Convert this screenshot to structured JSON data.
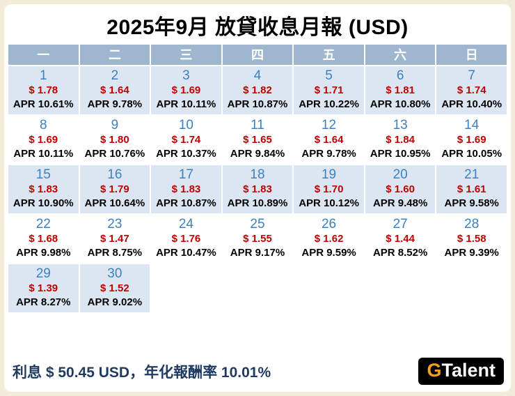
{
  "page": {
    "title": "2025年9月 放貸收息月報 (USD)"
  },
  "colors": {
    "page_background": "#f1ebd7",
    "card_background": "#ffffff",
    "header_background": "#9fb6cf",
    "cell_alt_background": "#dce6f2",
    "day_number_blue": "#3c80c0",
    "amount_red": "#c00000",
    "summary_navy": "#1f3a5f",
    "logo_orange": "#f7a01d",
    "logo_background": "#000000"
  },
  "calendar": {
    "weekday_headers": [
      "一",
      "二",
      "三",
      "四",
      "五",
      "六",
      "日"
    ],
    "total_grid_cells": 35,
    "days": [
      {
        "day": "1",
        "amount": "$ 1.78",
        "apr": "APR 10.61%"
      },
      {
        "day": "2",
        "amount": "$ 1.64",
        "apr": "APR 9.78%"
      },
      {
        "day": "3",
        "amount": "$ 1.69",
        "apr": "APR 10.11%"
      },
      {
        "day": "4",
        "amount": "$ 1.82",
        "apr": "APR 10.87%"
      },
      {
        "day": "5",
        "amount": "$ 1.71",
        "apr": "APR 10.22%"
      },
      {
        "day": "6",
        "amount": "$ 1.81",
        "apr": "APR 10.80%"
      },
      {
        "day": "7",
        "amount": "$ 1.74",
        "apr": "APR 10.40%"
      },
      {
        "day": "8",
        "amount": "$ 1.69",
        "apr": "APR 10.11%"
      },
      {
        "day": "9",
        "amount": "$ 1.80",
        "apr": "APR 10.76%"
      },
      {
        "day": "10",
        "amount": "$ 1.74",
        "apr": "APR 10.37%"
      },
      {
        "day": "11",
        "amount": "$ 1.65",
        "apr": "APR 9.84%"
      },
      {
        "day": "12",
        "amount": "$ 1.64",
        "apr": "APR 9.78%"
      },
      {
        "day": "13",
        "amount": "$ 1.84",
        "apr": "APR 10.95%"
      },
      {
        "day": "14",
        "amount": "$ 1.69",
        "apr": "APR 10.05%"
      },
      {
        "day": "15",
        "amount": "$ 1.83",
        "apr": "APR 10.90%"
      },
      {
        "day": "16",
        "amount": "$ 1.79",
        "apr": "APR 10.64%"
      },
      {
        "day": "17",
        "amount": "$ 1.83",
        "apr": "APR 10.87%"
      },
      {
        "day": "18",
        "amount": "$ 1.83",
        "apr": "APR 10.89%"
      },
      {
        "day": "19",
        "amount": "$ 1.70",
        "apr": "APR 10.12%"
      },
      {
        "day": "20",
        "amount": "$ 1.60",
        "apr": "APR 9.48%"
      },
      {
        "day": "21",
        "amount": "$ 1.61",
        "apr": "APR 9.58%"
      },
      {
        "day": "22",
        "amount": "$ 1.68",
        "apr": "APR 9.98%"
      },
      {
        "day": "23",
        "amount": "$ 1.47",
        "apr": "APR 8.75%"
      },
      {
        "day": "24",
        "amount": "$ 1.76",
        "apr": "APR 10.47%"
      },
      {
        "day": "25",
        "amount": "$ 1.55",
        "apr": "APR 9.17%"
      },
      {
        "day": "26",
        "amount": "$ 1.62",
        "apr": "APR 9.59%"
      },
      {
        "day": "27",
        "amount": "$ 1.44",
        "apr": "APR 8.52%"
      },
      {
        "day": "28",
        "amount": "$ 1.58",
        "apr": "APR 9.39%"
      },
      {
        "day": "29",
        "amount": "$ 1.39",
        "apr": "APR 8.27%"
      },
      {
        "day": "30",
        "amount": "$ 1.52",
        "apr": "APR 9.02%"
      }
    ]
  },
  "footer": {
    "summary": "利息 $ 50.45 USD，年化報酬率 10.01%",
    "logo_g": "G",
    "logo_rest": "Talent"
  }
}
